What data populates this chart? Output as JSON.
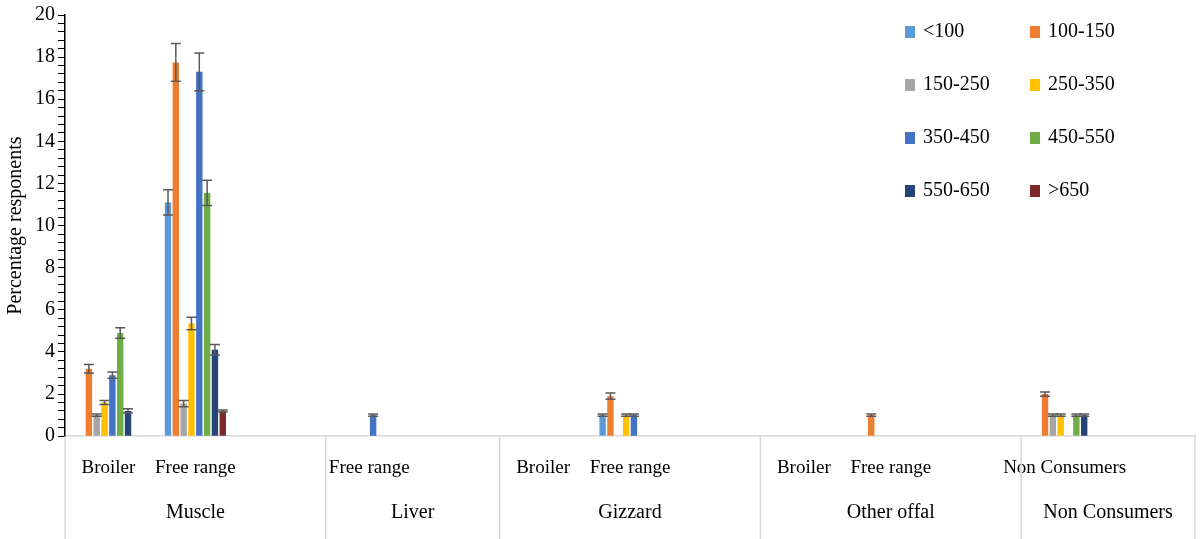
{
  "chart_data": {
    "type": "bar",
    "ylabel": "Percentage responents",
    "categories": [
      "Broiler",
      "Free range",
      null,
      "Free range",
      null,
      "Broiler",
      "Free range",
      null,
      "Broiler",
      "Free range",
      null,
      "Non Consumers",
      null
    ],
    "annotations": [
      "Muscle",
      "Liver",
      "Gizzard",
      "Other offal",
      "Non Consumers"
    ],
    "series": [
      {
        "name": "<100",
        "color": "#5b9bd5",
        "values": [
          0,
          11.1,
          null,
          0,
          null,
          0,
          1.0,
          null,
          0,
          0,
          null,
          0,
          null
        ],
        "errors": [
          null,
          0.6,
          null,
          null,
          null,
          null,
          0.05,
          null,
          null,
          null,
          null,
          null,
          null
        ]
      },
      {
        "name": "100-150",
        "color": "#ed7d31",
        "values": [
          3.2,
          17.75,
          null,
          0,
          null,
          0,
          1.9,
          null,
          0,
          1.0,
          null,
          2.0,
          null
        ],
        "errors": [
          0.2,
          0.9,
          null,
          null,
          null,
          null,
          0.15,
          null,
          null,
          0.05,
          null,
          0.1,
          null
        ]
      },
      {
        "name": "150-250",
        "color": "#a5a5a5",
        "values": [
          1.0,
          1.55,
          null,
          0,
          null,
          0,
          0,
          null,
          0,
          0,
          null,
          1.0,
          null
        ],
        "errors": [
          0.05,
          0.15,
          null,
          null,
          null,
          null,
          null,
          null,
          null,
          null,
          null,
          0.05,
          null
        ]
      },
      {
        "name": "250-350",
        "color": "#ffc000",
        "values": [
          1.6,
          5.35,
          null,
          0,
          null,
          0,
          1.0,
          null,
          0,
          0,
          null,
          1.0,
          null
        ],
        "errors": [
          0.1,
          0.3,
          null,
          null,
          null,
          null,
          0.05,
          null,
          null,
          null,
          null,
          0.05,
          null
        ]
      },
      {
        "name": "350-450",
        "color": "#4472c4",
        "values": [
          2.9,
          17.3,
          null,
          1.0,
          null,
          0,
          1.0,
          null,
          0,
          0,
          null,
          0,
          null
        ],
        "errors": [
          0.15,
          0.9,
          null,
          0.05,
          null,
          null,
          0.05,
          null,
          null,
          null,
          null,
          null,
          null
        ]
      },
      {
        "name": "450-550",
        "color": "#70ad47",
        "values": [
          4.9,
          11.55,
          null,
          0,
          null,
          0,
          0,
          null,
          0,
          0,
          null,
          1.0,
          null
        ],
        "errors": [
          0.25,
          0.6,
          null,
          null,
          null,
          null,
          null,
          null,
          null,
          null,
          null,
          0.05,
          null
        ]
      },
      {
        "name": "550-650",
        "color": "#264478",
        "values": [
          1.2,
          4.1,
          null,
          0,
          null,
          0,
          0,
          null,
          0,
          0,
          null,
          1.0,
          null
        ],
        "errors": [
          0.1,
          0.25,
          null,
          null,
          null,
          null,
          null,
          null,
          null,
          null,
          null,
          0.05,
          null
        ]
      },
      {
        "name": ">650",
        "color": "#7b2a2a",
        "values": [
          0,
          1.2,
          null,
          0,
          null,
          0,
          0,
          null,
          0,
          0,
          null,
          0,
          null
        ],
        "errors": [
          null,
          0.05,
          null,
          null,
          null,
          null,
          null,
          null,
          null,
          null,
          null,
          null,
          null
        ]
      }
    ],
    "ylim": [
      0,
      20
    ],
    "yticks": [
      0,
      {
        "value": 0.4,
        "label": null
      },
      {
        "value": 0.8,
        "label": null
      },
      {
        "value": 1.2,
        "label": null
      },
      {
        "value": 1.6,
        "label": null
      },
      2,
      {
        "value": 2.4,
        "label": null
      },
      {
        "value": 2.8,
        "label": null
      },
      {
        "value": 3.2,
        "label": null
      },
      {
        "value": 3.6,
        "label": null
      },
      4,
      {
        "value": 4.4,
        "label": null
      },
      {
        "value": 4.8,
        "label": null
      },
      {
        "value": 5.2,
        "label": null
      },
      {
        "value": 5.6,
        "label": null
      },
      6,
      {
        "value": 6.4,
        "label": null
      },
      {
        "value": 6.8,
        "label": null
      },
      {
        "value": 7.2,
        "label": null
      },
      {
        "value": 7.6,
        "label": null
      },
      8,
      {
        "value": 8.4,
        "label": null
      },
      {
        "value": 8.8,
        "label": null
      },
      {
        "value": 9.2,
        "label": null
      },
      {
        "value": 9.6,
        "label": null
      },
      10,
      {
        "value": 10.4,
        "label": null
      },
      {
        "value": 10.8,
        "label": null
      },
      {
        "value": 11.2,
        "label": null
      },
      {
        "value": 11.6,
        "label": null
      },
      12,
      {
        "value": 12.4,
        "label": null
      },
      {
        "value": 12.8,
        "label": null
      },
      {
        "value": 13.2,
        "label": null
      },
      {
        "value": 13.6,
        "label": null
      },
      14,
      {
        "value": 14.4,
        "label": null
      },
      {
        "value": 14.8,
        "label": null
      },
      {
        "value": 15.2,
        "label": null
      },
      {
        "value": 15.6,
        "label": null
      },
      16,
      {
        "value": 16.4,
        "label": null
      },
      {
        "value": 16.8,
        "label": null
      },
      {
        "value": 17.2,
        "label": null
      },
      {
        "value": 17.6,
        "label": null
      },
      18,
      {
        "value": 18.4,
        "label": null
      },
      {
        "value": 18.8,
        "label": null
      },
      {
        "value": 19.2,
        "label": null
      },
      {
        "value": 19.6,
        "label": null
      },
      20
    ],
    "grid": false,
    "legend": "top right"
  }
}
